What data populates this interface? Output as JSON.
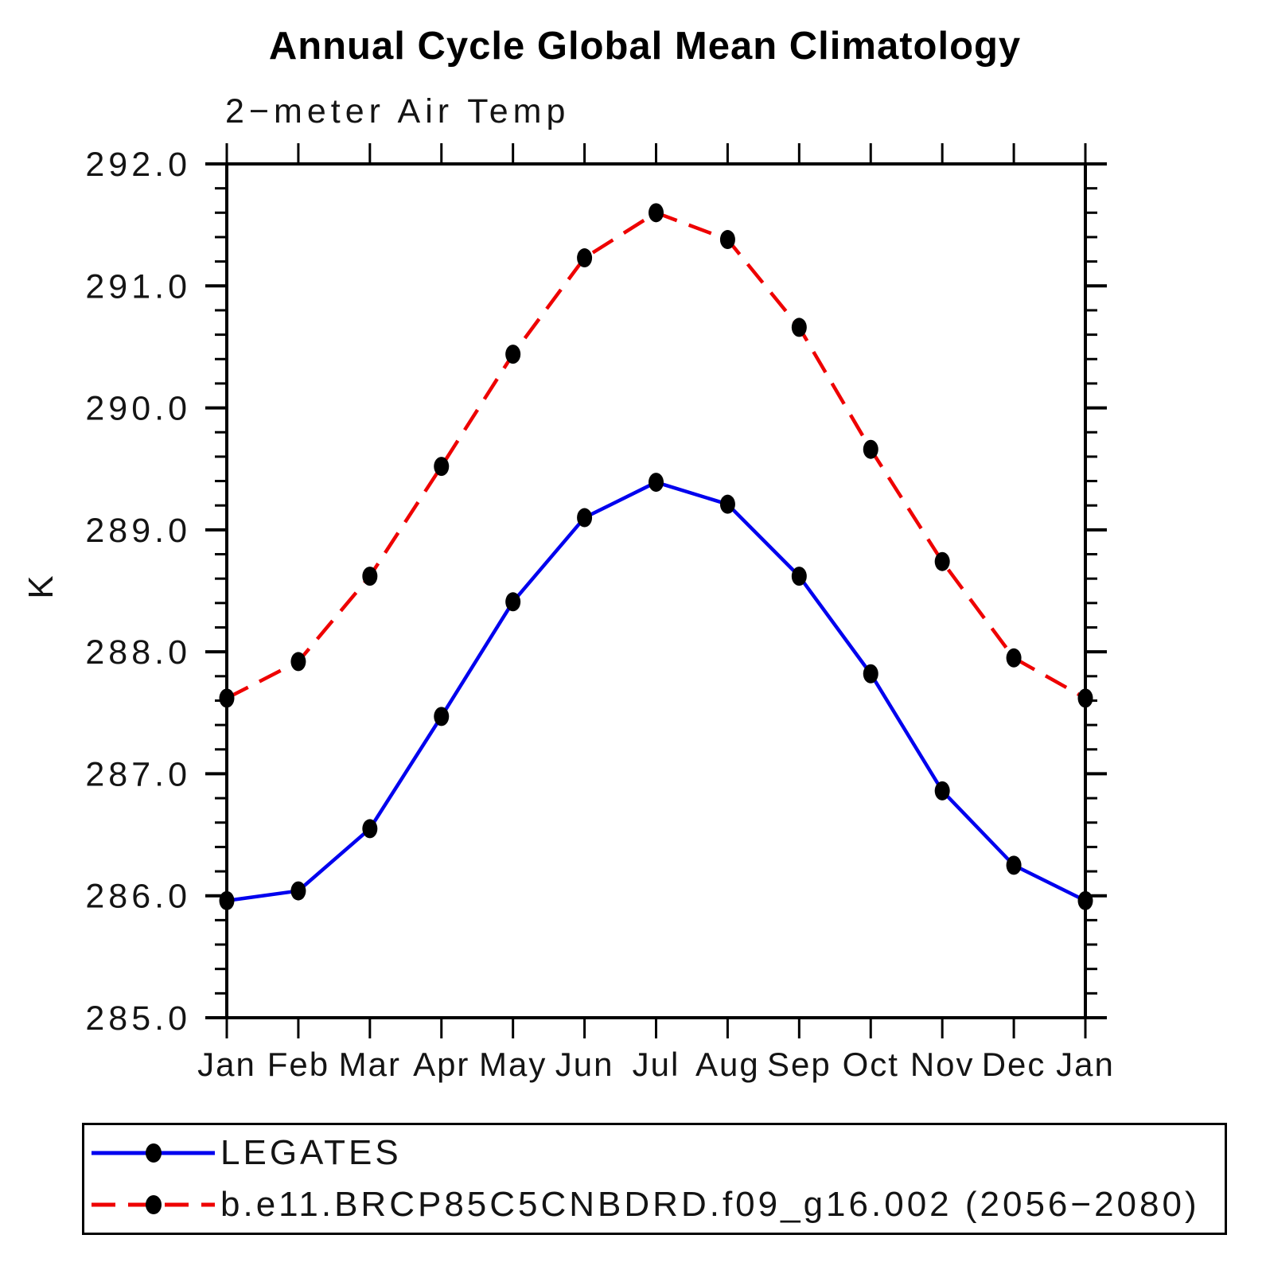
{
  "title": "Annual Cycle Global Mean Climatology",
  "subtitle": "2−meter Air Temp",
  "y_axis_label": "K",
  "legend": {
    "items": [
      {
        "label": "LEGATES",
        "color": "#0000ee",
        "line_style": "solid",
        "marker_color": "#000000"
      },
      {
        "label": "b.e11.BRCP85C5CNBDRD.f09_g16.002 (2056−2080)",
        "color": "#ee0000",
        "line_style": "dashed",
        "marker_color": "#000000"
      }
    ]
  },
  "chart_data": {
    "type": "line",
    "title": "Annual Cycle Global Mean Climatology",
    "subtitle": "2−meter Air Temp",
    "ylabel": "K",
    "categories": [
      "Jan",
      "Feb",
      "Mar",
      "Apr",
      "May",
      "Jun",
      "Jul",
      "Aug",
      "Sep",
      "Oct",
      "Nov",
      "Dec",
      "Jan"
    ],
    "ylim": [
      285.0,
      292.0
    ],
    "ytick_major_interval": 1.0,
    "ytick_minor_interval": 0.2,
    "ytick_labels": [
      "285.0",
      "286.0",
      "287.0",
      "288.0",
      "289.0",
      "290.0",
      "291.0",
      "292.0"
    ],
    "grid": false,
    "legend_position": "bottom",
    "marker": "filled-circle",
    "marker_color": "#000000",
    "series": [
      {
        "name": "LEGATES",
        "color": "#0000ee",
        "line_style": "solid",
        "values": [
          285.96,
          286.04,
          286.55,
          287.47,
          288.41,
          289.1,
          289.39,
          289.21,
          288.62,
          287.82,
          286.86,
          286.25,
          285.96
        ]
      },
      {
        "name": "b.e11.BRCP85C5CNBDRD.f09_g16.002 (2056−2080)",
        "color": "#ee0000",
        "line_style": "dashed",
        "values": [
          287.62,
          287.92,
          288.62,
          289.52,
          290.44,
          291.23,
          291.6,
          291.38,
          290.66,
          289.66,
          288.74,
          287.95,
          287.62
        ]
      }
    ]
  }
}
